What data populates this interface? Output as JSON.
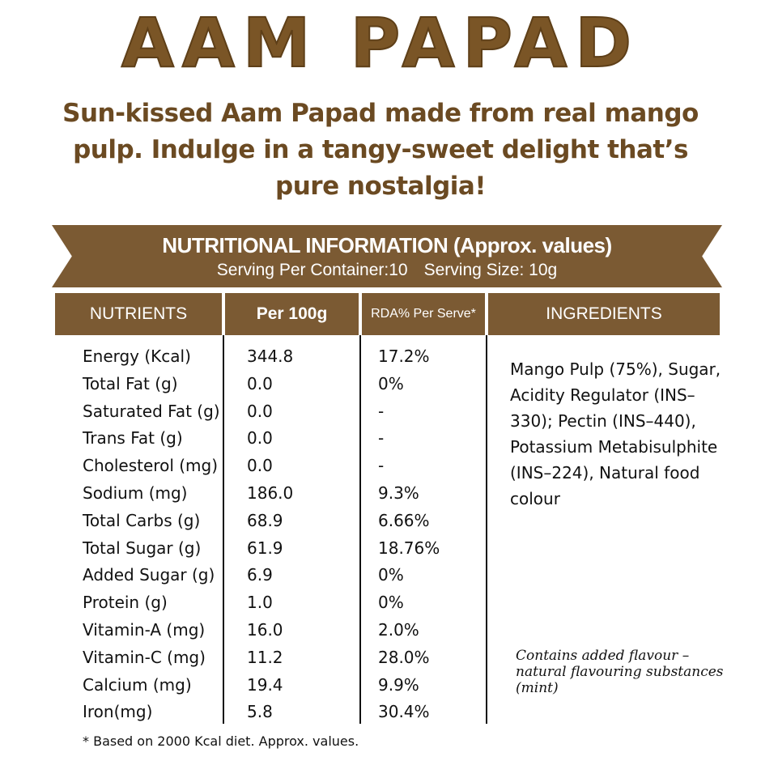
{
  "title": "AAM PAPAD",
  "tagline": "Sun-kissed Aam Papad made from real mango pulp. Indulge in a tangy-sweet delight that’s pure nostalgia!",
  "banner": {
    "heading": "NUTRITIONAL INFORMATION  (Approx. values)",
    "servings_per_container": "Serving Per Container:10",
    "serving_size": "Serving Size: 10g"
  },
  "columns": [
    "NUTRIENTS",
    "Per 100g",
    "RDA% Per Serve*",
    "INGREDIENTS"
  ],
  "rows": [
    {
      "nutrient": "Energy (Kcal)",
      "per100g": "344.8",
      "rda": "17.2%"
    },
    {
      "nutrient": "Total Fat (g)",
      "per100g": "0.0",
      "rda": "0%"
    },
    {
      "nutrient": "Saturated Fat (g)",
      "per100g": "0.0",
      "rda": "-"
    },
    {
      "nutrient": "Trans Fat (g)",
      "per100g": "0.0",
      "rda": "-"
    },
    {
      "nutrient": "Cholesterol (mg)",
      "per100g": "0.0",
      "rda": "-"
    },
    {
      "nutrient": "Sodium (mg)",
      "per100g": "186.0",
      "rda": "9.3%"
    },
    {
      "nutrient": "Total Carbs (g)",
      "per100g": "68.9",
      "rda": "6.66%"
    },
    {
      "nutrient": "Total Sugar (g)",
      "per100g": "61.9",
      "rda": "18.76%"
    },
    {
      "nutrient": "Added Sugar (g)",
      "per100g": "6.9",
      "rda": "0%"
    },
    {
      "nutrient": "Protein (g)",
      "per100g": "1.0",
      "rda": "0%"
    },
    {
      "nutrient": "Vitamin-A (mg)",
      "per100g": "16.0",
      "rda": "2.0%"
    },
    {
      "nutrient": "Vitamin-C (mg)",
      "per100g": "11.2",
      "rda": "28.0%"
    },
    {
      "nutrient": "Calcium (mg)",
      "per100g": "19.4",
      "rda": "9.9%"
    },
    {
      "nutrient": "Iron(mg)",
      "per100g": "5.8",
      "rda": "30.4%"
    }
  ],
  "ingredients": "Mango Pulp (75%), Sugar, Acidity Regulator (INS–330); Pectin (INS–440), Potassium Metabisulphite (INS–224), Natural food colour",
  "flavour_note": "Contains added flavour – natural flavouring substances (mint)",
  "footnote": "* Based on 2000 Kcal diet. Approx. values.",
  "colors": {
    "brand_brown": "#7b5a33",
    "title_brown": "#7a5526"
  }
}
